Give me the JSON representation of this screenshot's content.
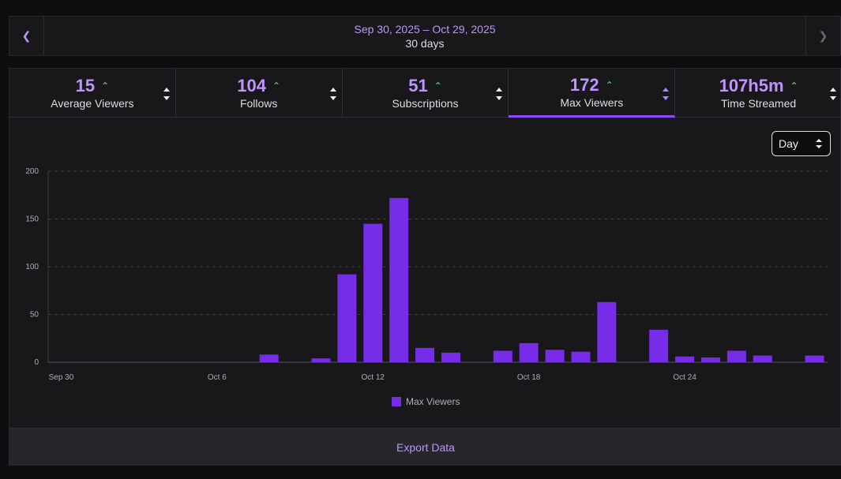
{
  "date_bar": {
    "prev_icon": "chevron-left-icon",
    "next_icon": "chevron-right-icon",
    "range": "Sep 30, 2025 – Oct 29, 2025",
    "days": "30 days"
  },
  "stats": [
    {
      "value": "15",
      "label": "Average Viewers",
      "trend": "up"
    },
    {
      "value": "104",
      "label": "Follows",
      "trend": "up"
    },
    {
      "value": "51",
      "label": "Subscriptions",
      "trend": "up"
    },
    {
      "value": "172",
      "label": "Max Viewers",
      "trend": "up",
      "active": true
    },
    {
      "value": "107h5m",
      "label": "Time Streamed",
      "trend": "up"
    }
  ],
  "interval_select": {
    "value": "Day"
  },
  "export": {
    "label": "Export Data"
  },
  "colors": {
    "accent": "#bf94ff",
    "bar": "#772ce8",
    "trend_up": "#5be98f"
  },
  "chart_data": {
    "type": "bar",
    "title": "",
    "xlabel": "",
    "ylabel": "",
    "ylim": [
      0,
      200
    ],
    "yticks": [
      0,
      50,
      100,
      150,
      200
    ],
    "grid": true,
    "legend": "bottom-center",
    "categories": [
      "Sep 30",
      "Oct 1",
      "Oct 2",
      "Oct 3",
      "Oct 4",
      "Oct 5",
      "Oct 6",
      "Oct 7",
      "Oct 8",
      "Oct 9",
      "Oct 10",
      "Oct 11",
      "Oct 12",
      "Oct 13",
      "Oct 14",
      "Oct 15",
      "Oct 16",
      "Oct 17",
      "Oct 18",
      "Oct 19",
      "Oct 20",
      "Oct 21",
      "Oct 22",
      "Oct 23",
      "Oct 24",
      "Oct 25",
      "Oct 26",
      "Oct 27",
      "Oct 28",
      "Oct 29"
    ],
    "x_tick_labels": [
      {
        "index": 0,
        "label": "Sep 30"
      },
      {
        "index": 6,
        "label": "Oct 6"
      },
      {
        "index": 12,
        "label": "Oct 12"
      },
      {
        "index": 18,
        "label": "Oct 18"
      },
      {
        "index": 24,
        "label": "Oct 24"
      }
    ],
    "series": [
      {
        "name": "Max Viewers",
        "color": "#772ce8",
        "values": [
          0,
          0,
          0,
          0,
          0,
          0,
          0,
          0,
          8,
          0,
          4,
          92,
          145,
          172,
          15,
          10,
          0,
          12,
          20,
          13,
          11,
          63,
          0,
          34,
          6,
          5,
          12,
          7,
          0,
          7
        ]
      }
    ]
  }
}
